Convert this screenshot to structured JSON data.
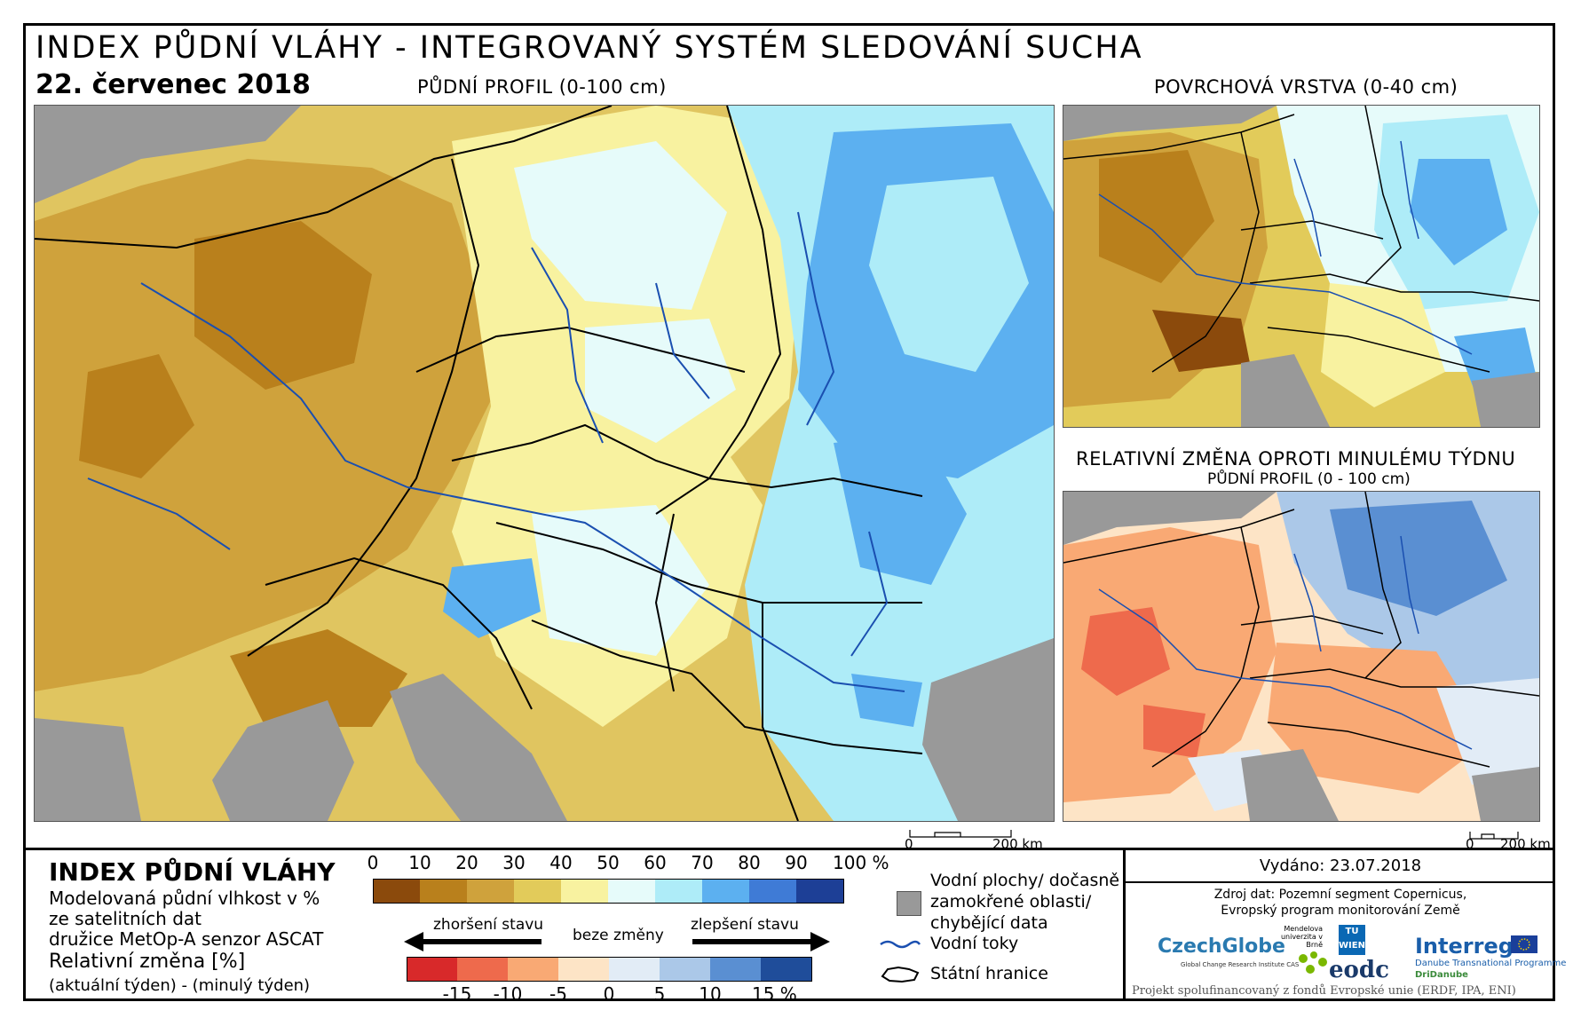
{
  "header": {
    "title": "INDEX PŮDNÍ VLÁHY - INTEGROVANÝ SYSTÉM SLEDOVÁNÍ SUCHA",
    "date": "22. červenec 2018"
  },
  "panels": {
    "main_label": "PŮDNÍ PROFIL (0-100 cm)",
    "surface_label": "POVRCHOVÁ VRSTVA (0-40 cm)",
    "change_label_line1": "RELATIVNÍ ZMĚNA OPROTI MINULÉMU TÝDNU",
    "change_label_line2": "PŮDNÍ PROFIL (0 - 100 cm)"
  },
  "scalebar": {
    "start": "0",
    "end": "200 km"
  },
  "legend": {
    "title": "INDEX PŮDNÍ VLÁHY",
    "desc_line1": "Modelovaná půdní vlhkost v %",
    "desc_line2": "ze satelitních dat",
    "desc_line3": "družice MetOp-A senzor ASCAT",
    "change_title": "Relativní změna [%]",
    "change_desc": "(aktuální týden) - (minulý týden)",
    "index_ticks": [
      "0",
      "10",
      "20",
      "30",
      "40",
      "50",
      "60",
      "70",
      "80",
      "90",
      "100 %"
    ],
    "index_colors": [
      "#8b4a0c",
      "#b9801c",
      "#cfa23c",
      "#e2cb5a",
      "#f8f2a0",
      "#e6fbfa",
      "#aeecf8",
      "#5cb0f0",
      "#3f7bd6",
      "#1d3f96"
    ],
    "arrow_worse": "zhoršení stavu",
    "arrow_none": "beze změny",
    "arrow_better": "zlepšení stavu",
    "change_ticks": [
      "-15",
      "-10",
      "-5",
      "0",
      "5",
      "10",
      "15 %"
    ],
    "change_colors": [
      "#d8292a",
      "#ee6a4c",
      "#f9a974",
      "#fde4c6",
      "#e2ecf6",
      "#abc8e8",
      "#5a8fd2",
      "#1f4d9a"
    ],
    "key_water_bodies": "Vodní plochy/ dočasně zamokřené oblasti/ chybějící data",
    "key_rivers": "Vodní toky",
    "key_borders": "Státní hranice"
  },
  "info": {
    "issued": "Vydáno: 23.07.2018",
    "source_line1": "Zdroj dat: Pozemní segment Copernicus,",
    "source_line2": "Evropský program monitorování Země",
    "logo_czechglobe": "CzechGlobe",
    "logo_czechglobe_sub": "Global Change Research Institute CAS",
    "logo_mendel": "Mendelova univerzita v Brně",
    "logo_tu": "TU WIEN",
    "logo_eodc": "eodc",
    "logo_interreg": "Interreg",
    "logo_interreg_sub1": "Danube Transnational Programme",
    "logo_interreg_sub2": "DriDanube",
    "footer": "Projekt spolufinancovaný z fondů Evropské unie (ERDF, IPA, ENI)"
  }
}
